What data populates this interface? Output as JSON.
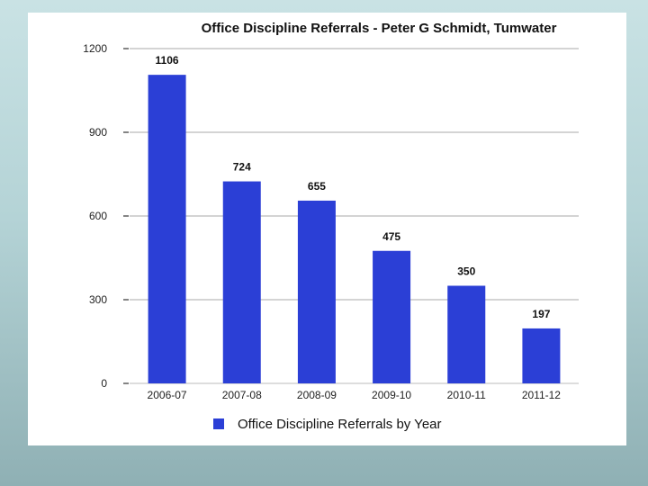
{
  "colors": {
    "bar": "#2b3fd6",
    "grid": "#aaaaaa",
    "axis": "#333333"
  },
  "chart_data": {
    "type": "bar",
    "title": "Office Discipline Referrals - Peter G Schmidt, Tumwater",
    "xlabel": "",
    "ylabel": "",
    "categories": [
      "2006-07",
      "2007-08",
      "2008-09",
      "2009-10",
      "2010-11",
      "2011-12"
    ],
    "series": [
      {
        "name": "Office Discipline Referrals by Year",
        "values": [
          1106,
          724,
          655,
          475,
          350,
          197
        ]
      }
    ],
    "data_labels": [
      "1106",
      "724",
      "655",
      "475",
      "350",
      "197"
    ],
    "y_ticks": [
      "0",
      "300",
      "600",
      "900",
      "1200"
    ],
    "ylim": [
      0,
      1200
    ],
    "grid": true,
    "legend_position": "bottom"
  }
}
